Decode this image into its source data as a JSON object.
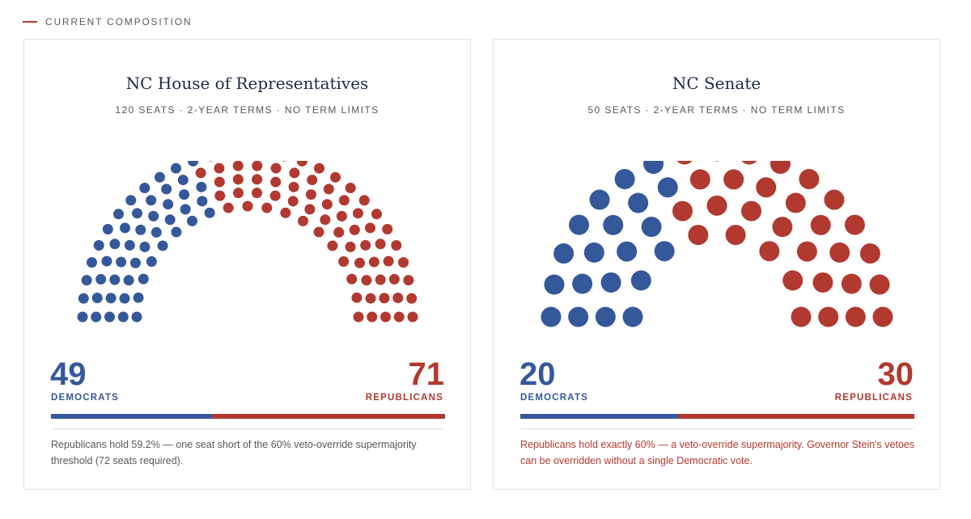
{
  "section_label": "CURRENT COMPOSITION",
  "colors": {
    "democrat": "#34589a",
    "republican": "#b1392f",
    "accent": "#b1392f"
  },
  "house": {
    "title": "NC House of Representatives",
    "subtitle": "120 SEATS · 2-YEAR TERMS · NO TERM LIMITS",
    "dem_count": "49",
    "dem_label": "DEMOCRATS",
    "rep_count": "71",
    "rep_label": "REPUBLICANS",
    "note": "Republicans hold 59.2% — one seat short of the 60% veto-override supermajority threshold (72 seats required)."
  },
  "senate": {
    "title": "NC Senate",
    "subtitle": "50 SEATS · 2-YEAR TERMS · NO TERM LIMITS",
    "dem_count": "20",
    "dem_label": "DEMOCRATS",
    "rep_count": "30",
    "rep_label": "REPUBLICANS",
    "note": "Republicans hold exactly 60% — a veto-override supermajority. Governor Stein's vetoes can be overridden without a single Democratic vote."
  },
  "chart_data": [
    {
      "type": "parliament",
      "title": "NC House of Representatives",
      "total_seats": 120,
      "rows": 5,
      "series": [
        {
          "name": "DEMOCRATS",
          "value": 49,
          "color": "#34589a"
        },
        {
          "name": "REPUBLICANS",
          "value": 71,
          "color": "#b1392f"
        }
      ]
    },
    {
      "type": "parliament",
      "title": "NC Senate",
      "total_seats": 50,
      "rows": 4,
      "series": [
        {
          "name": "DEMOCRATS",
          "value": 20,
          "color": "#34589a"
        },
        {
          "name": "REPUBLICANS",
          "value": 30,
          "color": "#b1392f"
        }
      ]
    }
  ]
}
